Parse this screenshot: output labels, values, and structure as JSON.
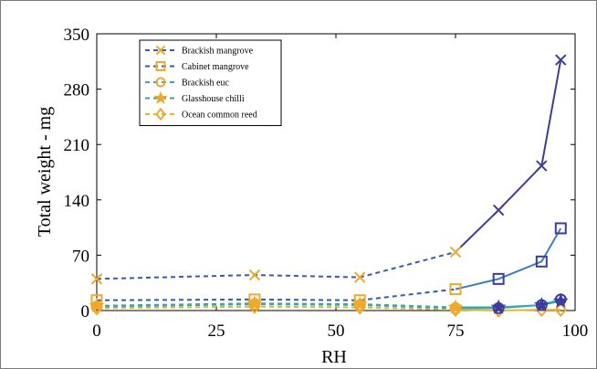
{
  "chart_data": {
    "type": "line",
    "title": "",
    "xlabel": "RH",
    "ylabel": "Total weight - mg",
    "xlim": [
      0,
      100
    ],
    "ylim": [
      0,
      350
    ],
    "xticks": [
      0,
      25,
      50,
      75,
      100
    ],
    "yticks": [
      0,
      70,
      140,
      210,
      280,
      350
    ],
    "grid": false,
    "legend_position": "top-left",
    "series": [
      {
        "name": "Brackish mangrove",
        "marker": "x",
        "colors": {
          "dashed": "#3a5aaf",
          "solid": "#3d3d9e",
          "marker_dashed": "#f0a828",
          "marker_solid": "#3d3d9e"
        },
        "dashed": {
          "x": [
            0,
            33,
            55,
            75
          ],
          "y": [
            40,
            45,
            42,
            74
          ]
        },
        "solid": {
          "x": [
            75,
            84,
            93,
            97
          ],
          "y": [
            74,
            127,
            183,
            317
          ]
        }
      },
      {
        "name": "Cabinet mangrove",
        "marker": "square",
        "colors": {
          "dashed": "#3a5aaf",
          "solid": "#3a7fc2",
          "marker_dashed": "#f0a828",
          "marker_solid": "#3d3d9e"
        },
        "dashed": {
          "x": [
            0,
            33,
            55,
            75
          ],
          "y": [
            13,
            14,
            13,
            27
          ]
        },
        "solid": {
          "x": [
            75,
            84,
            93,
            97
          ],
          "y": [
            27,
            40,
            62,
            104
          ]
        }
      },
      {
        "name": "Brackish euc",
        "marker": "circle",
        "colors": {
          "dashed": "#2fa8c9",
          "solid": "#2fa8c9",
          "marker_dashed": "#f0a828",
          "marker_solid": "#3d3d9e"
        },
        "dashed": {
          "x": [
            0,
            33,
            55,
            75
          ],
          "y": [
            5,
            8,
            7,
            3
          ]
        },
        "solid": {
          "x": [
            75,
            84,
            93,
            97
          ],
          "y": [
            3,
            3,
            7,
            14
          ]
        }
      },
      {
        "name": "Glasshouse chilli",
        "marker": "star",
        "colors": {
          "dashed": "#3daa72",
          "solid": "#3daa72",
          "marker_dashed": "#f0a828",
          "marker_solid": "#3d3d9e"
        },
        "dashed": {
          "x": [
            0,
            33,
            55,
            75
          ],
          "y": [
            6,
            9,
            8,
            4
          ]
        },
        "solid": {
          "x": [
            75,
            84,
            93,
            97
          ],
          "y": [
            4,
            4,
            7,
            12
          ]
        }
      },
      {
        "name": "Ocean common reed",
        "marker": "diamond",
        "colors": {
          "dashed": "#e8b820",
          "solid": "#e8b820",
          "marker_dashed": "#f0a828",
          "marker_solid": "#f0a828"
        },
        "dashed": {
          "x": [
            0,
            33,
            55,
            75
          ],
          "y": [
            3,
            5,
            4,
            1
          ]
        },
        "solid": {
          "x": [
            75,
            84,
            93,
            97
          ],
          "y": [
            1,
            0,
            1,
            1
          ]
        }
      }
    ]
  }
}
